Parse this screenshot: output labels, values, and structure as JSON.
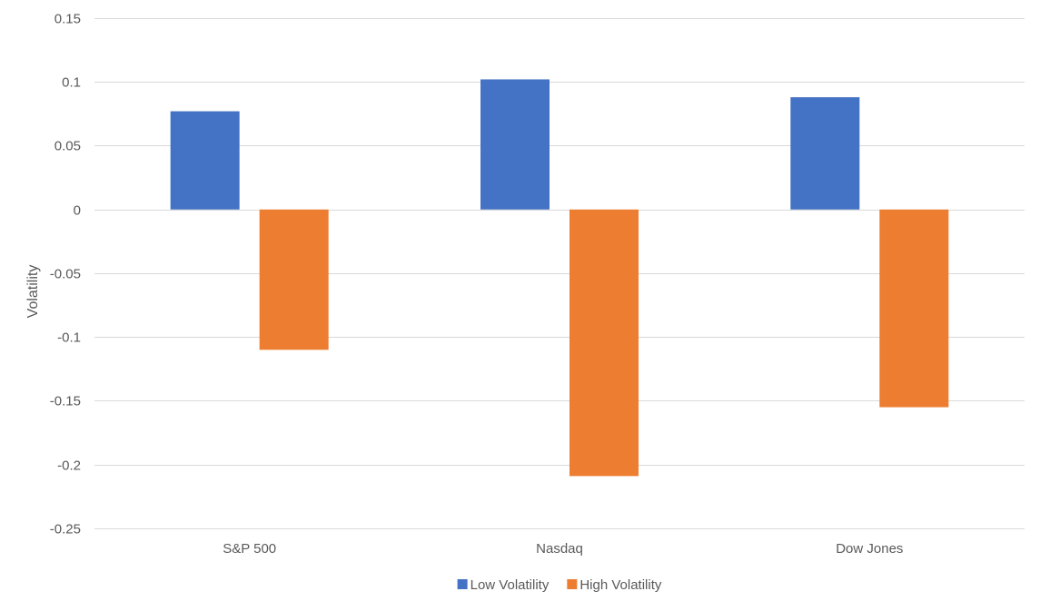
{
  "chart_data": {
    "type": "bar",
    "title": "",
    "xlabel": "",
    "ylabel": "Volatility",
    "ylim": [
      -0.25,
      0.15
    ],
    "ytick_step": 0.05,
    "yticks": [
      "0.15",
      "0.1",
      "0.05",
      "0",
      "-0.05",
      "-0.1",
      "-0.15",
      "-0.2",
      "-0.25"
    ],
    "categories": [
      "S&P 500",
      "Nasdaq",
      "Dow Jones"
    ],
    "series": [
      {
        "name": "Low Volatility",
        "color": "#4472C4",
        "values": [
          0.077,
          0.102,
          0.088
        ]
      },
      {
        "name": "High Volatility",
        "color": "#ED7D31",
        "values": [
          -0.11,
          -0.209,
          -0.155
        ]
      }
    ],
    "grid": true,
    "legend_position": "bottom"
  }
}
